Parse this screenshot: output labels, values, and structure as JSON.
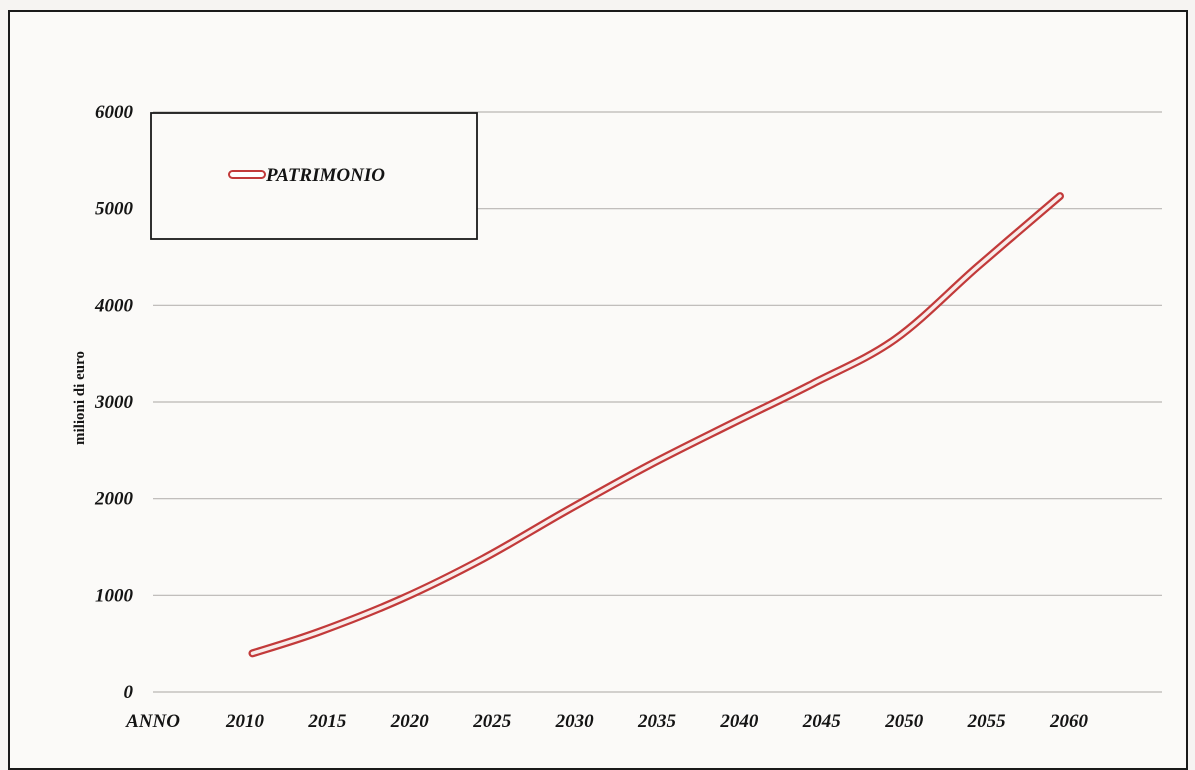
{
  "chart_data": {
    "type": "line",
    "title": "",
    "xlabel": "ANNO",
    "ylabel": "milioni di euro",
    "x": [
      2010,
      2015,
      2020,
      2025,
      2030,
      2035,
      2040,
      2045,
      2050,
      2055,
      2060
    ],
    "x_ticks": [
      "2010",
      "2015",
      "2020",
      "2025",
      "2030",
      "2035",
      "2040",
      "2045",
      "2050",
      "2055",
      "2060"
    ],
    "y_ticks": [
      "0",
      "1000",
      "2000",
      "3000",
      "4000",
      "5000",
      "6000"
    ],
    "ylim": [
      0,
      6000
    ],
    "grid": true,
    "legend_position": "top-left",
    "series": [
      {
        "name": "PATRIMONIO",
        "color": "#c23a3a",
        "x": [
          2011,
          2015,
          2020,
          2025,
          2030,
          2035,
          2040,
          2045,
          2050,
          2055,
          2060
        ],
        "values": [
          400,
          620,
          960,
          1380,
          1870,
          2340,
          2770,
          3190,
          3650,
          4400,
          5130
        ]
      }
    ]
  }
}
